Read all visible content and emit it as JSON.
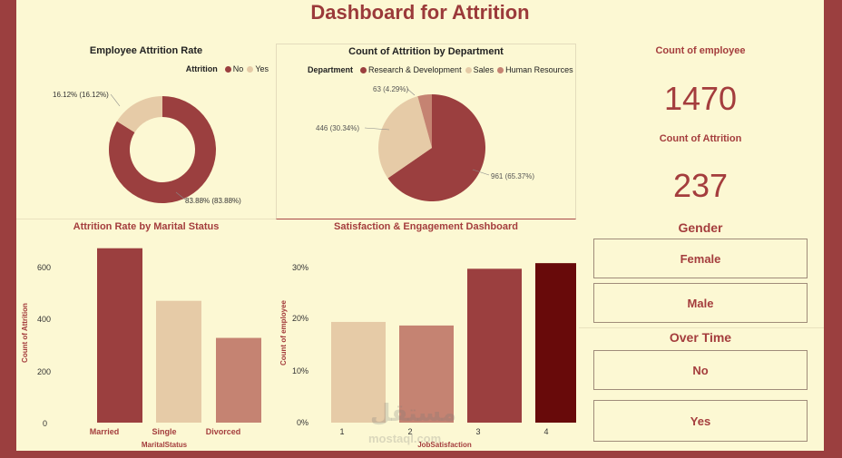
{
  "title": "Dashboard for Attrition",
  "colors": {
    "primary": "#9b3f3f",
    "beige": "#e6cba7",
    "salmon": "#c58372",
    "dark": "#680a0a",
    "background": "#fcf8d3"
  },
  "attrition_rate": {
    "title": "Employee Attrition Rate",
    "legend_label": "Attrition",
    "legend_items": [
      {
        "label": "No",
        "color": "#9b3f3f"
      },
      {
        "label": "Yes",
        "color": "#e6cba7"
      }
    ],
    "label_no": "83.88% (83.88%)",
    "label_yes": "16.12% (16.12%)"
  },
  "by_department": {
    "title": "Count of Attrition by Department",
    "legend_label": "Department",
    "legend_items": [
      {
        "label": "Research & Development",
        "color": "#9b3f3f"
      },
      {
        "label": "Sales",
        "color": "#e6cba7"
      },
      {
        "label": "Human Resources",
        "color": "#c58372"
      }
    ],
    "label_rd": "961 (65.37%)",
    "label_sales": "446 (30.34%)",
    "label_hr": "63 (4.29%)"
  },
  "kpis": {
    "employee_label": "Count of employee",
    "employee_value": "1470",
    "attrition_label": "Count of Attrition",
    "attrition_value": "237"
  },
  "slicers": {
    "gender_title": "Gender",
    "gender_options": [
      "Female",
      "Male"
    ],
    "overtime_title": "Over Time",
    "overtime_options": [
      "No",
      "Yes"
    ]
  },
  "marital": {
    "title": "Attrition Rate by Marital Status",
    "xlabel": "MaritalStatus",
    "ylabel": "Count of Attrition",
    "ticks": [
      "0",
      "200",
      "400",
      "600"
    ],
    "categories": [
      "Married",
      "Single",
      "Divorced"
    ]
  },
  "satisfaction": {
    "title": "Satisfaction & Engagement Dashboard",
    "xlabel": "JobSatisfaction",
    "ylabel": "Count of employee",
    "ticks": [
      "0%",
      "10%",
      "20%",
      "30%"
    ],
    "categories": [
      "1",
      "2",
      "3",
      "4"
    ]
  },
  "watermark": {
    "arabic": "مستقل",
    "latin": "mostaql.com"
  },
  "chart_data": [
    {
      "type": "pie",
      "title": "Employee Attrition Rate",
      "categories": [
        "No",
        "Yes"
      ],
      "values": [
        83.88,
        16.12
      ],
      "legend": "top-right"
    },
    {
      "type": "pie",
      "title": "Count of Attrition by Department",
      "categories": [
        "Research & Development",
        "Sales",
        "Human Resources"
      ],
      "values": [
        961,
        446,
        63
      ],
      "legend": "top"
    },
    {
      "type": "bar",
      "title": "Attrition Rate by Marital Status",
      "categories": [
        "Married",
        "Single",
        "Divorced"
      ],
      "values": [
        673,
        470,
        327
      ],
      "colors": [
        "#9b3f3f",
        "#e6cba7",
        "#c58372"
      ],
      "xlabel": "MaritalStatus",
      "ylabel": "Count of Attrition",
      "ylim": [
        0,
        700
      ]
    },
    {
      "type": "bar",
      "title": "Satisfaction & Engagement Dashboard",
      "categories": [
        "1",
        "2",
        "3",
        "4"
      ],
      "values": [
        19.7,
        19.0,
        30.1,
        31.2
      ],
      "colors": [
        "#e6cba7",
        "#c58372",
        "#9b3f3f",
        "#680a0a"
      ],
      "xlabel": "JobSatisfaction",
      "ylabel": "Count of employee",
      "ylim": [
        0,
        33
      ]
    }
  ]
}
